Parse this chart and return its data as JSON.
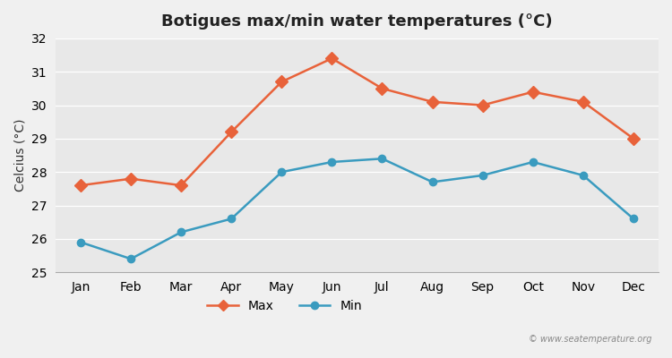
{
  "title": "Botigues max/min water temperatures (°C)",
  "ylabel": "Celcius (°C)",
  "months": [
    "Jan",
    "Feb",
    "Mar",
    "Apr",
    "May",
    "Jun",
    "Jul",
    "Aug",
    "Sep",
    "Oct",
    "Nov",
    "Dec"
  ],
  "max_values": [
    27.6,
    27.8,
    27.6,
    29.2,
    30.7,
    31.4,
    30.5,
    30.1,
    30.0,
    30.4,
    30.1,
    29.0
  ],
  "min_values": [
    25.9,
    25.4,
    26.2,
    26.6,
    28.0,
    28.3,
    28.4,
    27.7,
    27.9,
    28.3,
    27.9,
    26.6
  ],
  "max_color": "#e8623a",
  "min_color": "#3a9bbf",
  "bg_color": "#f0f0f0",
  "plot_bg_color": "#e8e8e8",
  "ylim": [
    25.0,
    32.0
  ],
  "yticks": [
    25,
    26,
    27,
    28,
    29,
    30,
    31,
    32
  ],
  "watermark": "© www.seatemperature.org",
  "legend_max": "Max",
  "legend_min": "Min"
}
